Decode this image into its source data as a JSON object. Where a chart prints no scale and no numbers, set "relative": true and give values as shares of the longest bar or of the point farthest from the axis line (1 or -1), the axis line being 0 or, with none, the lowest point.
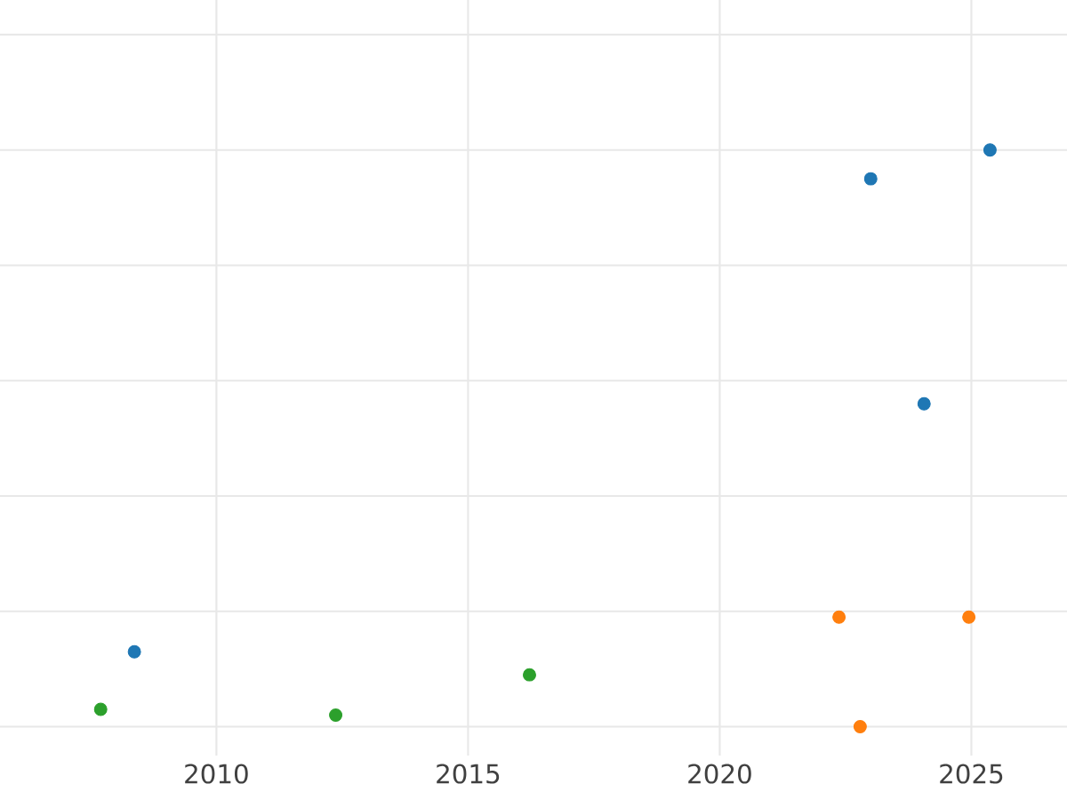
{
  "chart_data": {
    "type": "scatter",
    "relative": true,
    "marker": "circle",
    "grid": true,
    "tick_labels": "x",
    "xlim": [
      2005.7,
      2026.9
    ],
    "xticks": [
      2010,
      2015,
      2020,
      2025
    ],
    "series": [
      {
        "color": "#1f77b4",
        "x": [
          2008.37,
          2023.0,
          2024.06,
          2025.37
        ],
        "values": [
          0.13,
          0.95,
          0.56,
          1.0
        ]
      },
      {
        "color": "#ff7f0e",
        "x": [
          2022.37,
          2024.95,
          2022.79
        ],
        "values": [
          0.19,
          0.19,
          0.0
        ]
      },
      {
        "color": "#2ca02c",
        "x": [
          2007.7,
          2012.37,
          2016.22
        ],
        "values": [
          0.03,
          0.02,
          0.09
        ]
      }
    ]
  }
}
